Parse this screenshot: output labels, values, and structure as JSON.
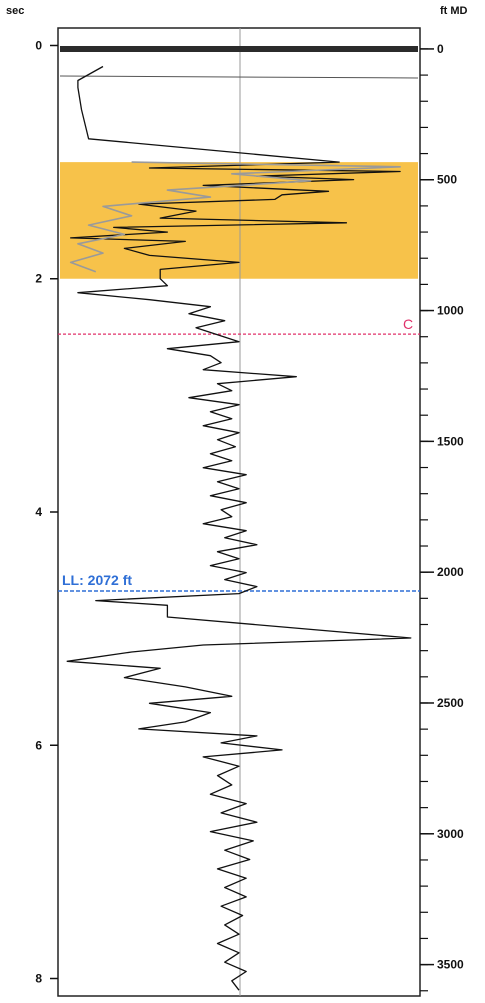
{
  "left_axis": {
    "title": "sec",
    "ticks": [
      {
        "value": 0,
        "label": "0"
      },
      {
        "value": 2,
        "label": "2"
      },
      {
        "value": 4,
        "label": "4"
      },
      {
        "value": 6,
        "label": "6"
      },
      {
        "value": 8,
        "label": "8"
      }
    ]
  },
  "right_axis": {
    "title": "ft MD",
    "ticks": [
      {
        "value": 0,
        "label": "0"
      },
      {
        "value": 500,
        "label": "500"
      },
      {
        "value": 1000,
        "label": "1000"
      },
      {
        "value": 1500,
        "label": "1500"
      },
      {
        "value": 2000,
        "label": "2000"
      },
      {
        "value": 2500,
        "label": "2500"
      },
      {
        "value": 3000,
        "label": "3000"
      },
      {
        "value": 3500,
        "label": "3500"
      }
    ],
    "minor_step": 100
  },
  "markers": {
    "c": {
      "label": "C",
      "depth_ft": 1090,
      "color": "#e0306a"
    },
    "ll": {
      "label": "LL: 2072 ft",
      "depth_ft": 2072,
      "color": "#2f6fd6"
    }
  },
  "colors": {
    "highlight": "#f7c24a",
    "trace": "#111111",
    "trace_secondary": "#9a9a9a",
    "grid": "#9a9a9a",
    "frame": "#222222"
  },
  "chart_data": {
    "type": "line",
    "title": "",
    "ylabel_left": "sec",
    "ylabel_right": "ft MD",
    "ylim_sec": [
      -0.15,
      8.15
    ],
    "ylim_ft": [
      -80,
      3620
    ],
    "grid": false,
    "highlight_band_sec": [
      1.0,
      2.0
    ],
    "series": [
      {
        "role": "primary",
        "points": [
          [
            0.18,
            0.12
          ],
          [
            0.3,
            0.05
          ],
          [
            0.36,
            0.05
          ],
          [
            0.55,
            0.06
          ],
          [
            0.8,
            0.08
          ],
          [
            1.0,
            0.78
          ],
          [
            1.05,
            0.25
          ],
          [
            1.08,
            0.95
          ],
          [
            1.12,
            0.55
          ],
          [
            1.15,
            0.82
          ],
          [
            1.2,
            0.4
          ],
          [
            1.25,
            0.75
          ],
          [
            1.28,
            0.62
          ],
          [
            1.32,
            0.6
          ],
          [
            1.36,
            0.22
          ],
          [
            1.42,
            0.38
          ],
          [
            1.48,
            0.28
          ],
          [
            1.52,
            0.8
          ],
          [
            1.56,
            0.15
          ],
          [
            1.6,
            0.3
          ],
          [
            1.65,
            0.03
          ],
          [
            1.68,
            0.35
          ],
          [
            1.74,
            0.18
          ],
          [
            1.8,
            0.25
          ],
          [
            1.86,
            0.5
          ],
          [
            1.92,
            0.28
          ],
          [
            2.0,
            0.28
          ],
          [
            2.06,
            0.3
          ],
          [
            2.12,
            0.05
          ],
          [
            2.18,
            0.25
          ],
          [
            2.24,
            0.42
          ],
          [
            2.3,
            0.36
          ],
          [
            2.36,
            0.46
          ],
          [
            2.42,
            0.38
          ],
          [
            2.48,
            0.44
          ],
          [
            2.54,
            0.5
          ],
          [
            2.6,
            0.3
          ],
          [
            2.66,
            0.42
          ],
          [
            2.72,
            0.45
          ],
          [
            2.78,
            0.4
          ],
          [
            2.84,
            0.66
          ],
          [
            2.9,
            0.44
          ],
          [
            2.96,
            0.48
          ],
          [
            3.02,
            0.36
          ],
          [
            3.08,
            0.5
          ],
          [
            3.14,
            0.42
          ],
          [
            3.2,
            0.48
          ],
          [
            3.26,
            0.4
          ],
          [
            3.32,
            0.5
          ],
          [
            3.38,
            0.44
          ],
          [
            3.44,
            0.49
          ],
          [
            3.5,
            0.42
          ],
          [
            3.56,
            0.48
          ],
          [
            3.62,
            0.4
          ],
          [
            3.68,
            0.52
          ],
          [
            3.74,
            0.44
          ],
          [
            3.8,
            0.5
          ],
          [
            3.86,
            0.42
          ],
          [
            3.92,
            0.52
          ],
          [
            3.98,
            0.45
          ],
          [
            4.04,
            0.48
          ],
          [
            4.1,
            0.4
          ],
          [
            4.16,
            0.52
          ],
          [
            4.22,
            0.46
          ],
          [
            4.28,
            0.55
          ],
          [
            4.34,
            0.44
          ],
          [
            4.4,
            0.5
          ],
          [
            4.46,
            0.42
          ],
          [
            4.52,
            0.52
          ],
          [
            4.58,
            0.46
          ],
          [
            4.64,
            0.55
          ],
          [
            4.7,
            0.5
          ],
          [
            4.76,
            0.1
          ],
          [
            4.8,
            0.3
          ],
          [
            4.9,
            0.3
          ],
          [
            5.08,
            0.98
          ],
          [
            5.14,
            0.4
          ],
          [
            5.2,
            0.2
          ],
          [
            5.28,
            0.02
          ],
          [
            5.34,
            0.28
          ],
          [
            5.42,
            0.18
          ],
          [
            5.5,
            0.35
          ],
          [
            5.58,
            0.48
          ],
          [
            5.64,
            0.25
          ],
          [
            5.72,
            0.42
          ],
          [
            5.8,
            0.35
          ],
          [
            5.86,
            0.22
          ],
          [
            5.92,
            0.55
          ],
          [
            5.98,
            0.45
          ],
          [
            6.04,
            0.62
          ],
          [
            6.1,
            0.4
          ],
          [
            6.18,
            0.5
          ],
          [
            6.26,
            0.44
          ],
          [
            6.34,
            0.48
          ],
          [
            6.42,
            0.42
          ],
          [
            6.5,
            0.52
          ],
          [
            6.58,
            0.45
          ],
          [
            6.66,
            0.55
          ],
          [
            6.74,
            0.42
          ],
          [
            6.82,
            0.54
          ],
          [
            6.9,
            0.46
          ],
          [
            6.98,
            0.53
          ],
          [
            7.06,
            0.44
          ],
          [
            7.14,
            0.52
          ],
          [
            7.22,
            0.46
          ],
          [
            7.3,
            0.52
          ],
          [
            7.38,
            0.45
          ],
          [
            7.46,
            0.51
          ],
          [
            7.54,
            0.46
          ],
          [
            7.62,
            0.5
          ],
          [
            7.7,
            0.44
          ],
          [
            7.78,
            0.5
          ],
          [
            7.86,
            0.46
          ],
          [
            7.94,
            0.52
          ],
          [
            8.02,
            0.48
          ],
          [
            8.1,
            0.5
          ]
        ]
      },
      {
        "role": "secondary",
        "points": [
          [
            1.0,
            0.2
          ],
          [
            1.04,
            0.95
          ],
          [
            1.1,
            0.48
          ],
          [
            1.16,
            0.7
          ],
          [
            1.24,
            0.3
          ],
          [
            1.3,
            0.42
          ],
          [
            1.38,
            0.12
          ],
          [
            1.46,
            0.2
          ],
          [
            1.54,
            0.08
          ],
          [
            1.62,
            0.18
          ],
          [
            1.7,
            0.05
          ],
          [
            1.78,
            0.12
          ],
          [
            1.86,
            0.03
          ],
          [
            1.94,
            0.1
          ]
        ]
      }
    ]
  }
}
